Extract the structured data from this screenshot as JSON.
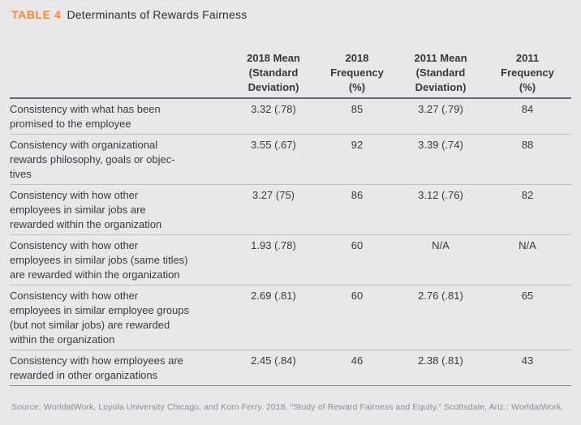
{
  "title": {
    "label": "TABLE 4",
    "text": "Determinants of Rewards Fairness"
  },
  "table": {
    "columns": [
      "",
      "2018 Mean\n(Standard\nDeviation)",
      "2018\nFrequency\n(%)",
      "2011 Mean\n(Standard\nDeviation)",
      "2011\nFrequency\n(%)"
    ],
    "rows": [
      {
        "label": "Consistency with what has been\npromised to the employee",
        "values": [
          "3.32 (.78)",
          "85",
          "3.27 (.79)",
          "84"
        ]
      },
      {
        "label": "Consistency with organizational\nrewards philosophy, goals or objec-\ntives",
        "values": [
          "3.55 (.67)",
          "92",
          "3.39 (.74)",
          "88"
        ]
      },
      {
        "label": "Consistency with how other\nemployees in similar jobs are\nrewarded within the organization",
        "values": [
          "3.27 (75)",
          "86",
          "3.12 (.76)",
          "82"
        ]
      },
      {
        "label": "Consistency with how other\nemployees in similar jobs (same titles)\nare rewarded within the organization",
        "values": [
          "1.93 (.78)",
          "60",
          "N/A",
          "N/A"
        ]
      },
      {
        "label": "Consistency with how other\nemployees in similar employee groups\n(but not similar jobs) are rewarded\nwithin the organization",
        "values": [
          "2.69 (.81)",
          "60",
          "2.76 (.81)",
          "65"
        ]
      },
      {
        "label": "Consistency with how employees are\nrewarded in other organizations",
        "values": [
          "2.45 (.84)",
          "46",
          "2.38 (.81)",
          "43"
        ]
      }
    ]
  },
  "source": "Source: WorldatWork, Loyola University Chicago, and Korn Ferry. 2018. “Study of Reward Fairness and Equity.” Scottsdale, Ariz.: WorldatWork.",
  "colors": {
    "accent_orange": "#f08b3e",
    "background": "#e9e7e9",
    "text_dark": "#3a393c",
    "header_rule": "#69676b",
    "row_rule": "#c2c0c3",
    "bottom_rule": "#8a888c",
    "source_gray": "#8d8b8f"
  }
}
